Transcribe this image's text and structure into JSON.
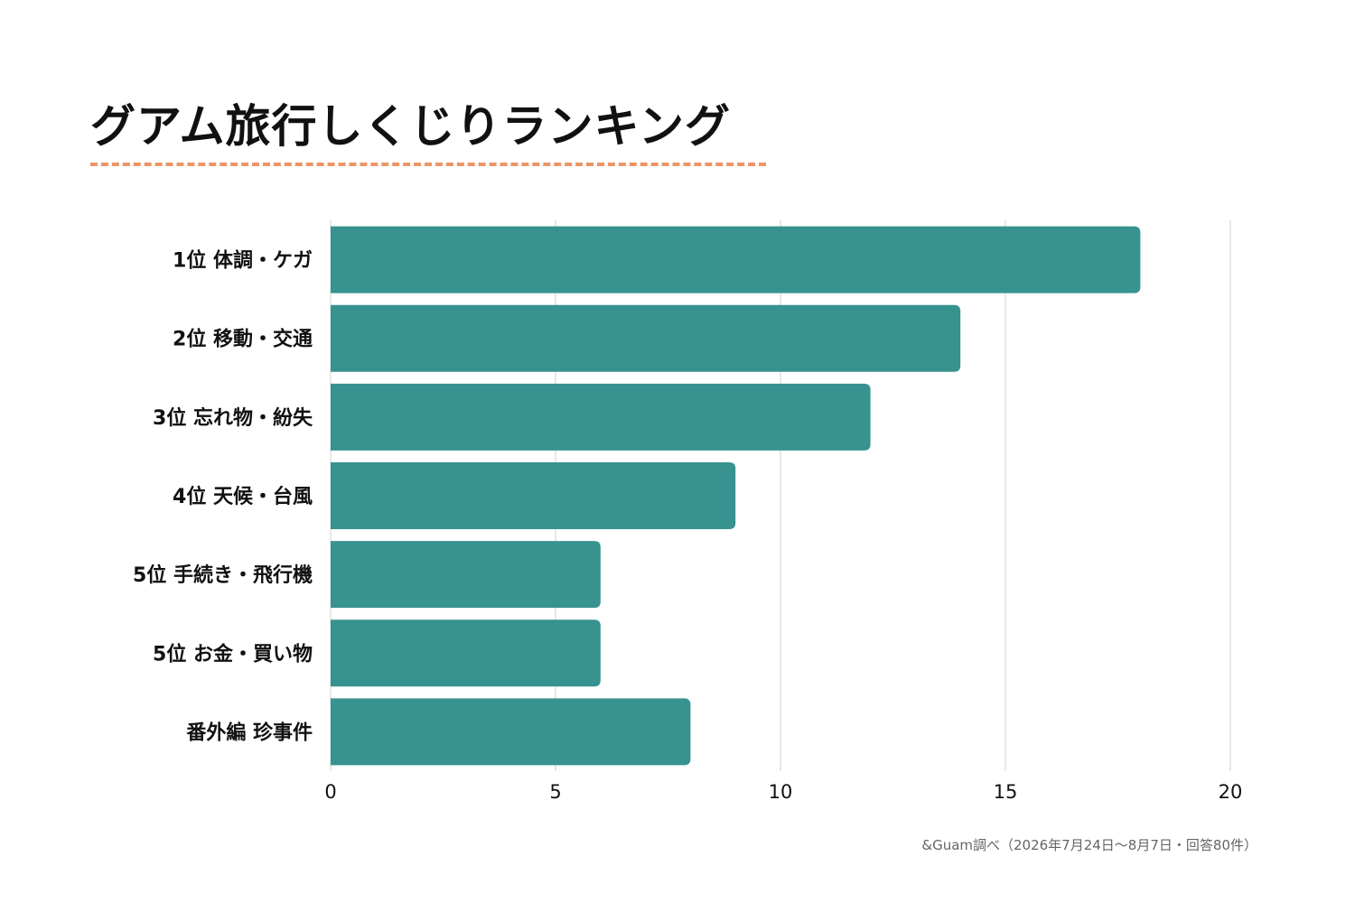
{
  "title": "グアム旅行しくじりランキング",
  "source": "&Guam調べ（2026年7月24日～8月7日・回答80件）",
  "colors": {
    "bar": "#379290",
    "grid": "#d0d0d0",
    "title_rule": "#ec9566"
  },
  "chart_data": {
    "type": "bar",
    "orientation": "horizontal",
    "categories": [
      "1位 体調・ケガ",
      "2位 移動・交通",
      "3位 忘れ物・紛失",
      "4位 天候・台風",
      "5位 手続き・飛行機",
      "5位 お金・買い物",
      "番外編 珍事件"
    ],
    "values": [
      18,
      14,
      12,
      9,
      6,
      6,
      8
    ],
    "xlim": [
      0,
      20
    ],
    "xticks": [
      0,
      5,
      10,
      15,
      20
    ],
    "grid": true,
    "legend": "none"
  }
}
